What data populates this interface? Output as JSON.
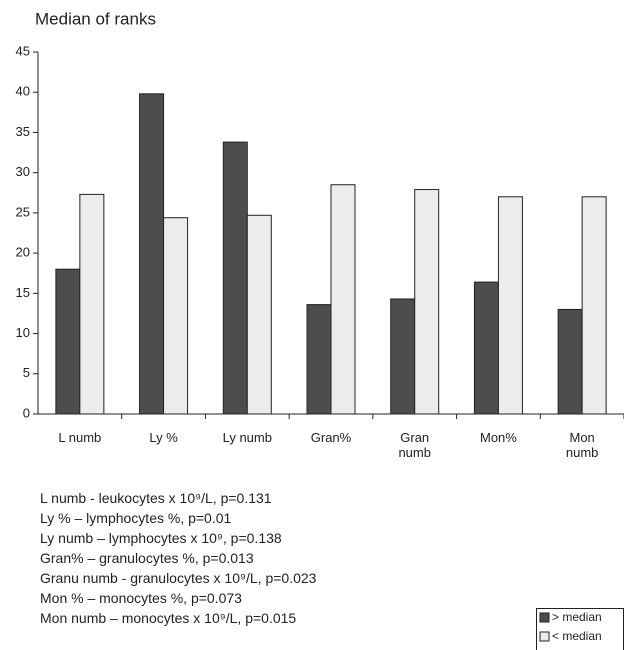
{
  "chart_data": {
    "type": "bar",
    "title": "Median  of ranks",
    "categories": [
      "L numb",
      "Ly %",
      "Ly numb",
      "Gran%",
      "Gran numb",
      "Mon%",
      "Mon numb"
    ],
    "series": [
      {
        "name": "> median",
        "color": "#4d4d4d",
        "values": [
          18,
          39.8,
          33.8,
          13.6,
          14.3,
          16.4,
          13
        ]
      },
      {
        "name": "< median",
        "color": "#ececec",
        "values": [
          27.3,
          24.4,
          24.7,
          28.5,
          27.9,
          27,
          27
        ]
      }
    ],
    "ylim": [
      0,
      45
    ],
    "yticks": [
      0,
      5,
      10,
      15,
      20,
      25,
      30,
      35,
      40,
      45
    ],
    "grid": false,
    "legend": "bottom-right",
    "notes": [
      "L numb - leukocytes x 10⁹/L, p=0.131",
      "Ly % – lymphocytes %, p=0.01",
      "Ly numb – lymphocytes x 10⁹, p=0.138",
      "Gran% – granulocytes %, p=0.013",
      "Granu numb - granulocytes x 10⁹/L, p=0.023",
      "Mon % – monocytes %, p=0.073",
      "Mon numb – monocytes x 10⁹/L, p=0.015"
    ]
  }
}
